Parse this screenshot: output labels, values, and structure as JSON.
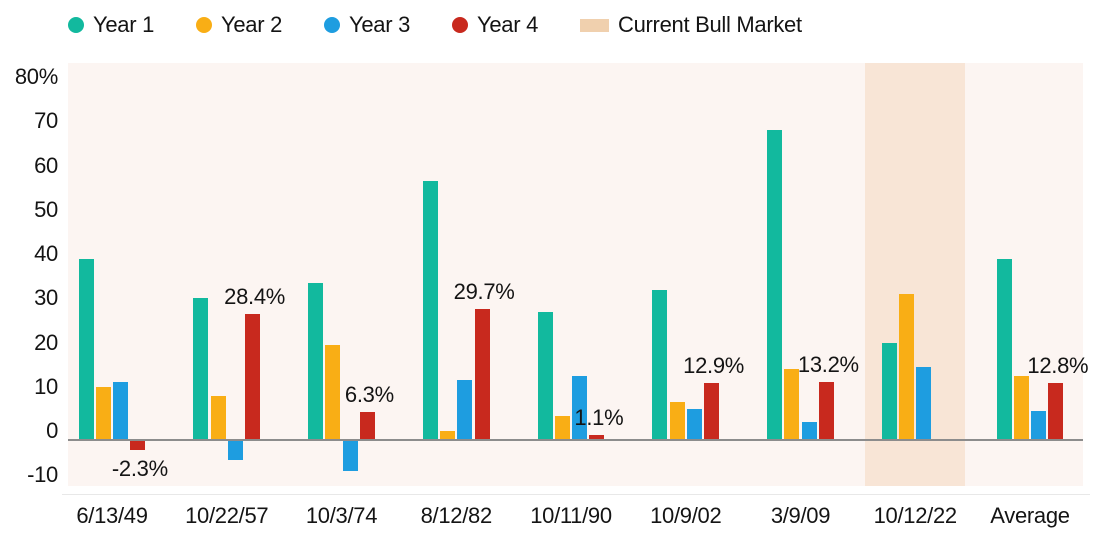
{
  "legend": {
    "items": [
      {
        "label": "Year 1",
        "color": "#12b99e",
        "shape": "circle"
      },
      {
        "label": "Year 2",
        "color": "#f9ae15",
        "shape": "circle"
      },
      {
        "label": "Year 3",
        "color": "#1e9de0",
        "shape": "circle"
      },
      {
        "label": "Year 4",
        "color": "#c8291e",
        "shape": "circle"
      },
      {
        "label": "Current Bull Market",
        "color": "#f0d0ae",
        "shape": "square"
      }
    ]
  },
  "chart_data": {
    "type": "bar",
    "title": "",
    "categories": [
      "6/13/49",
      "10/22/57",
      "10/3/74",
      "8/12/82",
      "10/11/90",
      "10/9/02",
      "3/9/09",
      "10/12/22",
      "Average"
    ],
    "series": [
      {
        "name": "Year 1",
        "color": "#12b99e",
        "values": [
          41,
          32,
          35.5,
          58.5,
          29,
          34,
          70,
          22,
          41
        ]
      },
      {
        "name": "Year 2",
        "color": "#f9ae15",
        "values": [
          12,
          10,
          21.5,
          2,
          5.5,
          8.5,
          16,
          33,
          14.5
        ]
      },
      {
        "name": "Year 3",
        "color": "#1e9de0",
        "values": [
          13,
          -4.5,
          -7,
          13.5,
          14.5,
          7,
          4,
          16.5,
          6.5
        ]
      },
      {
        "name": "Year 4",
        "color": "#c8291e",
        "values": [
          -2.3,
          28.4,
          6.3,
          29.7,
          1.1,
          12.9,
          13.2,
          null,
          12.8
        ]
      }
    ],
    "data_labels": [
      "-2.3%",
      "28.4%",
      "6.3%",
      "29.7%",
      "1.1%",
      "12.9%",
      "13.2%",
      null,
      "12.8%"
    ],
    "yticks": [
      "80%",
      "70",
      "60",
      "50",
      "40",
      "30",
      "20",
      "10",
      "0",
      "-10"
    ],
    "ylim": [
      -10.4,
      85.2
    ],
    "grid": false,
    "legend_position": "top",
    "highlight_band": {
      "category": "10/12/22",
      "label": "Current Bull Market",
      "color": "#f8e5d6"
    },
    "colors": {
      "plot_bg": "#fcf5f2",
      "axis_line": "#8c8c8c",
      "text": "#141414",
      "bottom_rule": "#e8e8e8"
    }
  }
}
